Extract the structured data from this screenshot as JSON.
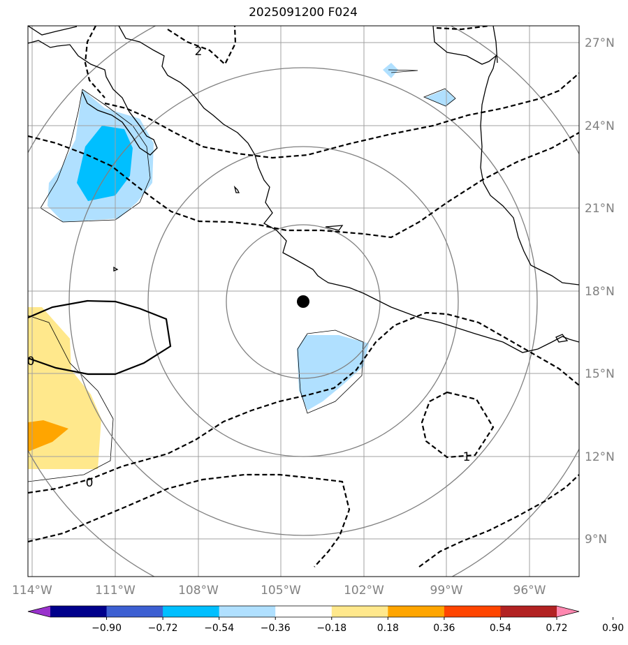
{
  "title": "2025091200 F024",
  "map": {
    "lat_labels": [
      "27°N",
      "24°N",
      "21°N",
      "18°N",
      "15°N",
      "12°N",
      "9°N"
    ],
    "lon_labels": [
      "114°W",
      "111°W",
      "108°W",
      "105°W",
      "102°W",
      "99°W",
      "96°W"
    ],
    "contour_labels": [
      "2",
      "0",
      "0",
      "1"
    ],
    "storm_center": {
      "lat": 17.6,
      "lon": -104.2
    }
  },
  "colorbar": {
    "tick_labels": [
      "−0.90",
      "−0.72",
      "−0.54",
      "−0.36",
      "−0.18",
      "0.18",
      "0.36",
      "0.54",
      "0.72",
      "0.90"
    ],
    "colors": [
      "#9932cc",
      "#00008b",
      "#3c5fd2",
      "#00bfff",
      "#b0e0ff",
      "#ffffff",
      "#ffe88c",
      "#ffa500",
      "#ff4500",
      "#b22222",
      "#ff88b0"
    ]
  }
}
